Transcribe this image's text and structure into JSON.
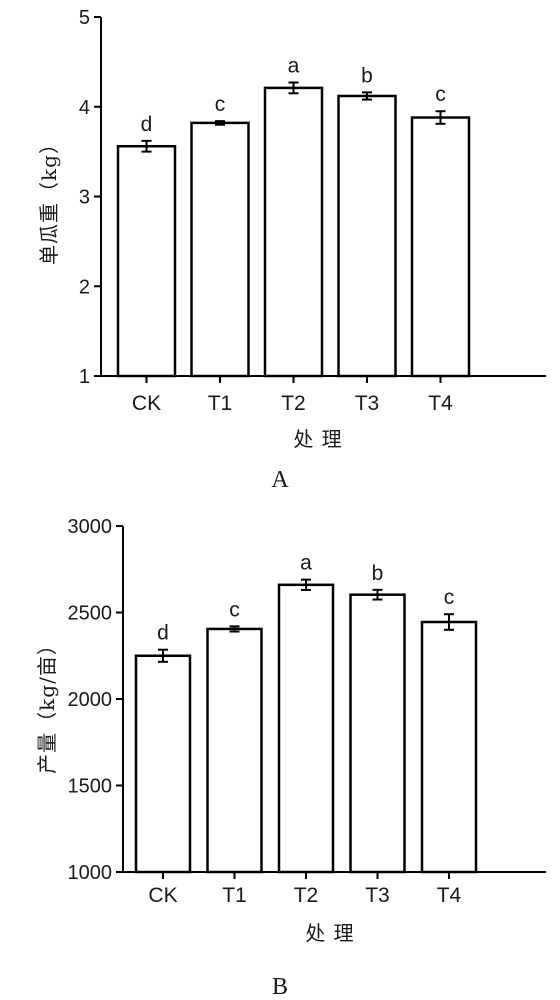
{
  "chart_data": [
    {
      "type": "bar",
      "panel_label": "A",
      "categories": [
        "CK",
        "T1",
        "T2",
        "T3",
        "T4"
      ],
      "values": [
        3.56,
        3.82,
        4.21,
        4.12,
        3.88
      ],
      "errors": [
        0.06,
        0.02,
        0.06,
        0.04,
        0.07
      ],
      "significance": [
        "d",
        "c",
        "a",
        "b",
        "c"
      ],
      "xlabel": "处 理",
      "ylabel": "单瓜重（kg）",
      "ylim": [
        1,
        5
      ],
      "yticks": [
        1,
        2,
        3,
        4,
        5
      ],
      "grid": false,
      "bar_fill": "#ffffff",
      "bar_stroke": "#000000"
    },
    {
      "type": "bar",
      "panel_label": "B",
      "categories": [
        "CK",
        "T1",
        "T2",
        "T3",
        "T4"
      ],
      "values": [
        2250,
        2405,
        2660,
        2603,
        2445
      ],
      "errors": [
        35,
        15,
        30,
        28,
        45
      ],
      "significance": [
        "d",
        "c",
        "a",
        "b",
        "c"
      ],
      "xlabel": "处 理",
      "ylabel": "产量（kg/亩）",
      "ylim": [
        1000,
        3000
      ],
      "yticks": [
        1000,
        1500,
        2000,
        2500,
        3000
      ],
      "grid": false,
      "bar_fill": "#ffffff",
      "bar_stroke": "#000000"
    }
  ]
}
